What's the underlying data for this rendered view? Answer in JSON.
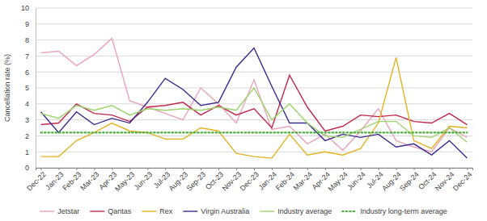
{
  "chart_data": {
    "type": "line",
    "y_label": "Cancellation rate (%)",
    "categories": [
      "Dec-22",
      "Jan-23",
      "Feb-23",
      "Mar-23",
      "Apr-23",
      "May-23",
      "Jun-23",
      "Jul-23",
      "Aug-23",
      "Sep-23",
      "Oct-23",
      "Nov-23",
      "Dec-23",
      "Jan-24",
      "Feb-24",
      "Mar-24",
      "Apr-24",
      "May-24",
      "Jun-24",
      "Jul-24",
      "Aug-24",
      "Sep-24",
      "Oct-24",
      "Nov-24",
      "Dec-24"
    ],
    "series": [
      {
        "name": "Jetstar",
        "color": "#eba3b8",
        "line_style": "solid",
        "values": [
          7.2,
          7.3,
          6.4,
          7.1,
          8.1,
          4.2,
          3.8,
          3.4,
          3.0,
          5.0,
          4.0,
          2.8,
          5.5,
          2.4,
          2.6,
          1.5,
          2.1,
          1.1,
          2.3,
          3.7,
          1.7,
          1.3,
          1.0,
          2.5,
          1.9
        ]
      },
      {
        "name": "Qantas",
        "color": "#c2264b",
        "line_style": "solid",
        "values": [
          2.7,
          2.8,
          4.0,
          3.4,
          3.3,
          2.9,
          3.8,
          3.9,
          4.1,
          3.3,
          3.9,
          3.3,
          3.7,
          2.5,
          5.8,
          3.8,
          2.3,
          2.6,
          3.3,
          3.2,
          3.3,
          2.9,
          2.8,
          3.4,
          2.7
        ]
      },
      {
        "name": "Rex",
        "color": "#e3b21f",
        "line_style": "solid",
        "values": [
          0.7,
          0.7,
          1.7,
          2.2,
          2.8,
          2.3,
          2.2,
          1.8,
          1.8,
          2.5,
          2.3,
          0.9,
          0.7,
          0.6,
          2.1,
          0.8,
          1.0,
          0.8,
          1.2,
          2.8,
          6.9,
          1.7,
          1.2,
          2.6,
          2.5
        ]
      },
      {
        "name": "Virgin Australia",
        "color": "#3a2a8e",
        "line_style": "solid",
        "values": [
          3.5,
          2.2,
          3.5,
          2.7,
          3.1,
          2.8,
          4.1,
          5.6,
          4.9,
          3.9,
          4.1,
          6.3,
          7.5,
          5.1,
          2.8,
          2.8,
          1.7,
          2.1,
          1.9,
          2.1,
          1.3,
          1.5,
          0.8,
          1.7,
          0.6
        ]
      },
      {
        "name": "Industry average",
        "color": "#9bd46b",
        "line_style": "solid",
        "values": [
          3.4,
          3.1,
          3.9,
          3.6,
          3.9,
          3.3,
          3.7,
          3.6,
          3.7,
          3.6,
          3.8,
          3.6,
          5.0,
          3.0,
          4.0,
          2.8,
          2.0,
          1.9,
          2.4,
          2.9,
          2.9,
          2.0,
          1.9,
          2.5,
          1.6
        ]
      },
      {
        "name": "Industry long-term average",
        "color": "#4cae3c",
        "line_style": "dotted",
        "values": [
          2.2,
          2.2,
          2.2,
          2.2,
          2.2,
          2.2,
          2.2,
          2.2,
          2.2,
          2.2,
          2.2,
          2.2,
          2.2,
          2.2,
          2.2,
          2.2,
          2.2,
          2.2,
          2.2,
          2.2,
          2.2,
          2.2,
          2.2,
          2.2,
          2.2
        ]
      }
    ],
    "ylim": [
      0,
      10
    ],
    "yticks": [
      0,
      1,
      2,
      3,
      4,
      5,
      6,
      7,
      8,
      9,
      10
    ],
    "grid": true,
    "legend": "bottom"
  }
}
